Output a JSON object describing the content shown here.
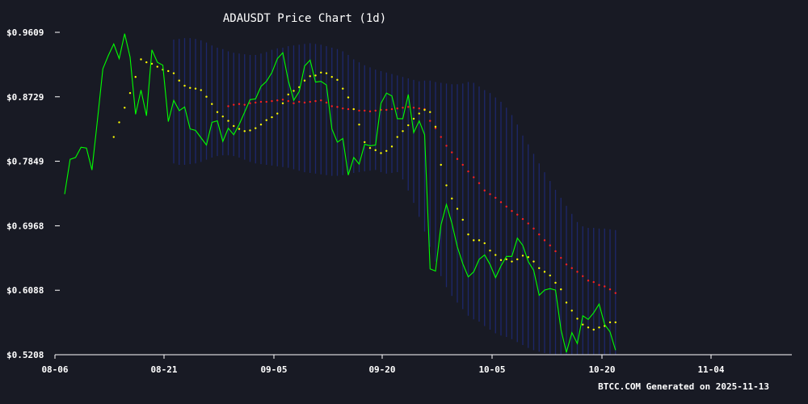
{
  "chart_data": {
    "type": "line",
    "title": "ADAUSDT Price Chart (1d)",
    "footer": "BTCC.COM Generated on 2025-11-13",
    "xlabel": "",
    "ylabel": "",
    "x_tick_labels": [
      "08-06",
      "08-21",
      "09-05",
      "09-20",
      "10-05",
      "10-20",
      "11-04"
    ],
    "y_tick_labels": [
      "$0.9609",
      "$0.8729",
      "$0.7849",
      "$0.6968",
      "$0.6088",
      "$0.5208"
    ],
    "y_tick_values": [
      0.9609,
      0.8729,
      0.7849,
      0.6968,
      0.6088,
      0.5208
    ],
    "ylim": [
      0.5208,
      0.9609
    ],
    "x_start": "2025-08-06",
    "grid": false,
    "colors": {
      "background": "#181a24",
      "price": "#00ff00",
      "short_ma": "#ffff00",
      "long_ma": "#ff2020",
      "bands": "#1e2a78",
      "axis": "#ffffff"
    },
    "series": [
      {
        "values": [
          0.74,
          0.7875,
          0.79,
          0.804,
          0.803,
          0.773,
          0.84,
          0.911,
          0.929,
          0.945,
          0.925,
          0.959,
          0.927,
          0.849,
          0.882,
          0.847,
          0.937,
          0.92,
          0.916,
          0.839,
          0.868,
          0.854,
          0.859,
          0.829,
          0.827,
          0.817,
          0.807,
          0.838,
          0.84,
          0.812,
          0.83,
          0.821,
          0.835,
          0.852,
          0.869,
          0.87,
          0.887,
          0.894,
          0.906,
          0.925,
          0.933,
          0.895,
          0.868,
          0.88,
          0.915,
          0.923,
          0.893,
          0.894,
          0.889,
          0.829,
          0.811,
          0.816,
          0.766,
          0.79,
          0.781,
          0.808,
          0.806,
          0.807,
          0.864,
          0.878,
          0.874,
          0.843,
          0.843,
          0.876,
          0.824,
          0.84,
          0.821,
          0.638,
          0.635,
          0.698,
          0.726,
          0.7,
          0.668,
          0.645,
          0.627,
          0.634,
          0.651,
          0.657,
          0.644,
          0.626,
          0.642,
          0.655,
          0.655,
          0.68,
          0.67,
          0.648,
          0.636,
          0.602,
          0.609,
          0.611,
          0.609,
          0.555,
          0.524,
          0.551,
          0.536,
          0.574,
          0.569,
          0.578,
          0.59,
          0.562,
          0.552,
          0.527
        ]
      },
      {
        "values": [
          null,
          null,
          null,
          null,
          null,
          null,
          null,
          null,
          null,
          0.818,
          0.838,
          0.858,
          0.878,
          0.9,
          0.924,
          0.92,
          0.918,
          0.914,
          0.91,
          0.908,
          0.905,
          0.895,
          0.888,
          0.885,
          0.884,
          0.882,
          0.873,
          0.863,
          0.852,
          0.846,
          0.84,
          0.833,
          0.829,
          0.826,
          0.827,
          0.83,
          0.835,
          0.841,
          0.845,
          0.85,
          0.864,
          0.876,
          0.881,
          0.886,
          0.895,
          0.901,
          0.902,
          0.906,
          0.905,
          0.9,
          0.896,
          0.884,
          0.872,
          0.856,
          0.835,
          0.811,
          0.803,
          0.8,
          0.796,
          0.799,
          0.805,
          0.818,
          0.826,
          0.834,
          0.843,
          0.85,
          0.855,
          0.852,
          0.832,
          0.78,
          0.752,
          0.734,
          0.72,
          0.705,
          0.685,
          0.677,
          0.677,
          0.673,
          0.663,
          0.657,
          0.65,
          0.651,
          0.648,
          0.651,
          0.656,
          0.654,
          0.648,
          0.639,
          0.634,
          0.629,
          0.619,
          0.61,
          0.592,
          0.581,
          0.57,
          0.562,
          0.558,
          0.555,
          0.558,
          0.56,
          0.565,
          0.565
        ]
      },
      {
        "values": [
          null,
          null,
          null,
          null,
          null,
          null,
          null,
          null,
          null,
          null,
          null,
          null,
          null,
          null,
          null,
          null,
          null,
          null,
          null,
          null,
          null,
          null,
          null,
          null,
          null,
          null,
          null,
          null,
          null,
          null,
          0.86,
          0.862,
          0.863,
          0.862,
          0.864,
          0.865,
          0.866,
          0.866,
          0.867,
          0.868,
          0.869,
          0.867,
          0.864,
          0.866,
          0.865,
          0.866,
          0.867,
          0.868,
          0.865,
          0.86,
          0.859,
          0.857,
          0.856,
          0.856,
          0.854,
          0.854,
          0.853,
          0.854,
          0.855,
          0.855,
          0.856,
          0.857,
          0.858,
          0.859,
          0.858,
          0.857,
          0.856,
          0.84,
          0.83,
          0.818,
          0.806,
          0.797,
          0.788,
          0.78,
          0.771,
          0.763,
          0.755,
          0.745,
          0.74,
          0.735,
          0.729,
          0.723,
          0.717,
          0.712,
          0.706,
          0.7,
          0.693,
          0.685,
          0.677,
          0.67,
          0.662,
          0.653,
          0.644,
          0.639,
          0.634,
          0.628,
          0.622,
          0.62,
          0.616,
          0.614,
          0.61,
          0.605
        ]
      }
    ],
    "bands": {
      "start_index": 20,
      "upper": [
        0.951,
        0.952,
        0.953,
        0.953,
        0.952,
        0.95,
        0.947,
        0.943,
        0.94,
        0.938,
        0.935,
        0.933,
        0.932,
        0.931,
        0.93,
        0.93,
        0.932,
        0.934,
        0.937,
        0.939,
        0.94,
        0.942,
        0.943,
        0.944,
        0.945,
        0.946,
        0.945,
        0.944,
        0.942,
        0.94,
        0.938,
        0.935,
        0.93,
        0.924,
        0.92,
        0.916,
        0.913,
        0.91,
        0.908,
        0.906,
        0.904,
        0.902,
        0.9,
        0.898,
        0.896,
        0.894,
        0.895,
        0.895,
        0.893,
        0.892,
        0.891,
        0.89,
        0.89,
        0.891,
        0.893,
        0.892,
        0.887,
        0.882,
        0.878,
        0.872,
        0.866,
        0.858,
        0.848,
        0.835,
        0.82,
        0.808,
        0.795,
        0.782,
        0.77,
        0.758,
        0.746,
        0.735,
        0.724,
        0.713,
        0.702,
        0.696,
        0.694,
        0.694,
        0.693,
        0.693,
        0.692,
        0.691
      ],
      "lower": [
        0.782,
        0.78,
        0.78,
        0.781,
        0.782,
        0.784,
        0.787,
        0.79,
        0.792,
        0.793,
        0.793,
        0.792,
        0.79,
        0.787,
        0.784,
        0.782,
        0.781,
        0.78,
        0.779,
        0.778,
        0.777,
        0.776,
        0.774,
        0.772,
        0.77,
        0.769,
        0.768,
        0.767,
        0.766,
        0.765,
        0.765,
        0.766,
        0.768,
        0.769,
        0.77,
        0.771,
        0.772,
        0.773,
        0.77,
        0.768,
        0.769,
        0.77,
        0.76,
        0.745,
        0.728,
        0.709,
        0.689,
        0.668,
        0.648,
        0.628,
        0.613,
        0.601,
        0.592,
        0.583,
        0.574,
        0.569,
        0.566,
        0.56,
        0.555,
        0.55,
        0.547,
        0.545,
        0.542,
        0.538,
        0.534,
        0.53,
        0.527,
        0.525,
        0.523,
        0.522,
        0.521,
        0.521,
        0.521,
        0.521,
        0.521,
        0.521,
        0.521,
        0.521,
        0.521,
        0.521,
        0.521,
        0.521
      ]
    }
  }
}
